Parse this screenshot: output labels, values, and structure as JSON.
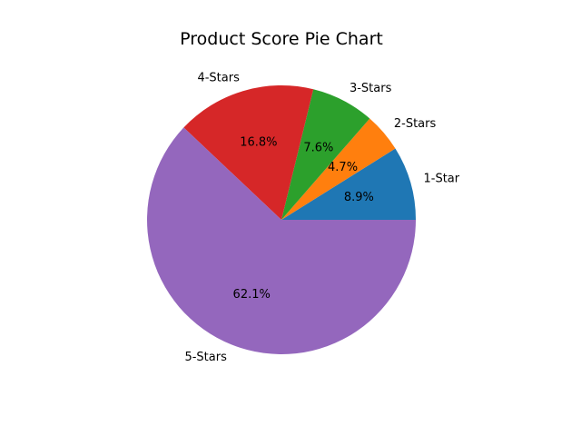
{
  "chart_data": {
    "type": "pie",
    "title": "Product Score Pie Chart",
    "categories": [
      "1-Star",
      "2-Stars",
      "3-Stars",
      "4-Stars",
      "5-Stars"
    ],
    "values": [
      8.9,
      4.7,
      7.6,
      16.8,
      62.1
    ],
    "percent_labels": [
      "8.9%",
      "4.7%",
      "7.6%",
      "16.8%",
      "62.1%"
    ],
    "colors": [
      "#1f77b4",
      "#ff7f0e",
      "#2ca02c",
      "#d62728",
      "#9467bd"
    ],
    "start_angle_deg": 0,
    "direction": "counterclockwise",
    "legend": "none"
  }
}
